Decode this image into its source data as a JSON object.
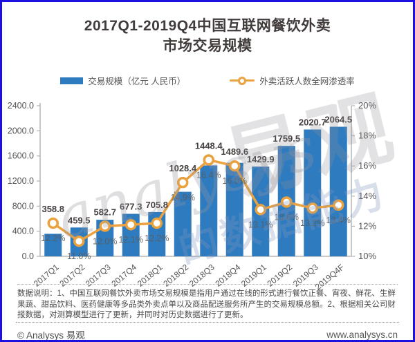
{
  "title": {
    "line1": "2017Q1-2019Q4中国互联网餐饮外卖",
    "line2": "市场交易规模"
  },
  "legend": {
    "bar_label": "交易规模（亿元 人民币）",
    "line_label": "外卖活跃人数全网渗透率"
  },
  "colors": {
    "bar": "#2e7bc0",
    "line": "#eba23e",
    "axis": "#b5b5b5",
    "value_label": "#474040",
    "pct_label": "#5c5c5c",
    "tick_label": "#555555"
  },
  "chart_data": {
    "type": "bar",
    "title": "2017Q1-2019Q4中国互联网餐饮外卖市场交易规模",
    "categories": [
      "2017Q1",
      "2017Q2",
      "2017Q3",
      "2017Q4",
      "2018Q1",
      "2018Q2",
      "2018Q3",
      "2018Q4",
      "2019Q1",
      "2019Q2",
      "2019Q3",
      "2019Q4F"
    ],
    "series": [
      {
        "name": "交易规模（亿元 人民币）",
        "type": "bar",
        "axis": "left",
        "values": [
          358.8,
          459.5,
          582.7,
          677.3,
          705.8,
          1028.4,
          1448.4,
          1489.6,
          1429.9,
          1759.5,
          2020.7,
          2064.5
        ]
      },
      {
        "name": "外卖活跃人数全网渗透率",
        "type": "line",
        "axis": "right",
        "unit": "%",
        "values": [
          12.2,
          11.0,
          12.0,
          12.1,
          12.2,
          14.9,
          16.4,
          16.0,
          13.1,
          13.6,
          13.2,
          13.4
        ]
      }
    ],
    "left_axis": {
      "min": 0,
      "max": 2400,
      "step": 400,
      "labels": [
        "0.0",
        "400.0",
        "800.0",
        "1200.0",
        "1600.0",
        "2000.0",
        "2400.0"
      ]
    },
    "right_axis": {
      "min": 10,
      "max": 20,
      "step": 2,
      "labels": [
        "10%",
        "12%",
        "14%",
        "16%",
        "18%",
        "20%"
      ]
    },
    "grid": false,
    "legend_position": "top"
  },
  "watermark": {
    "script": "analysys",
    "brand": "易观",
    "slogan": "的数据能力"
  },
  "footnote": "数据说明：1、中国互联网餐饮外卖市场交易规模是指用户通过在线的形式进行餐饮正餐、宵夜、鲜花、生鲜果蔬、甜品饮料、医药健康等多品类外卖点单以及商品配送服务所产生的交易规模总额。2、根据相关公司财报数据，对测算模型进行了更新，并同时对历史数据进行了更新。",
  "footer": {
    "copyright": "© Analysys 易观",
    "website": "www.analysys.cn"
  }
}
